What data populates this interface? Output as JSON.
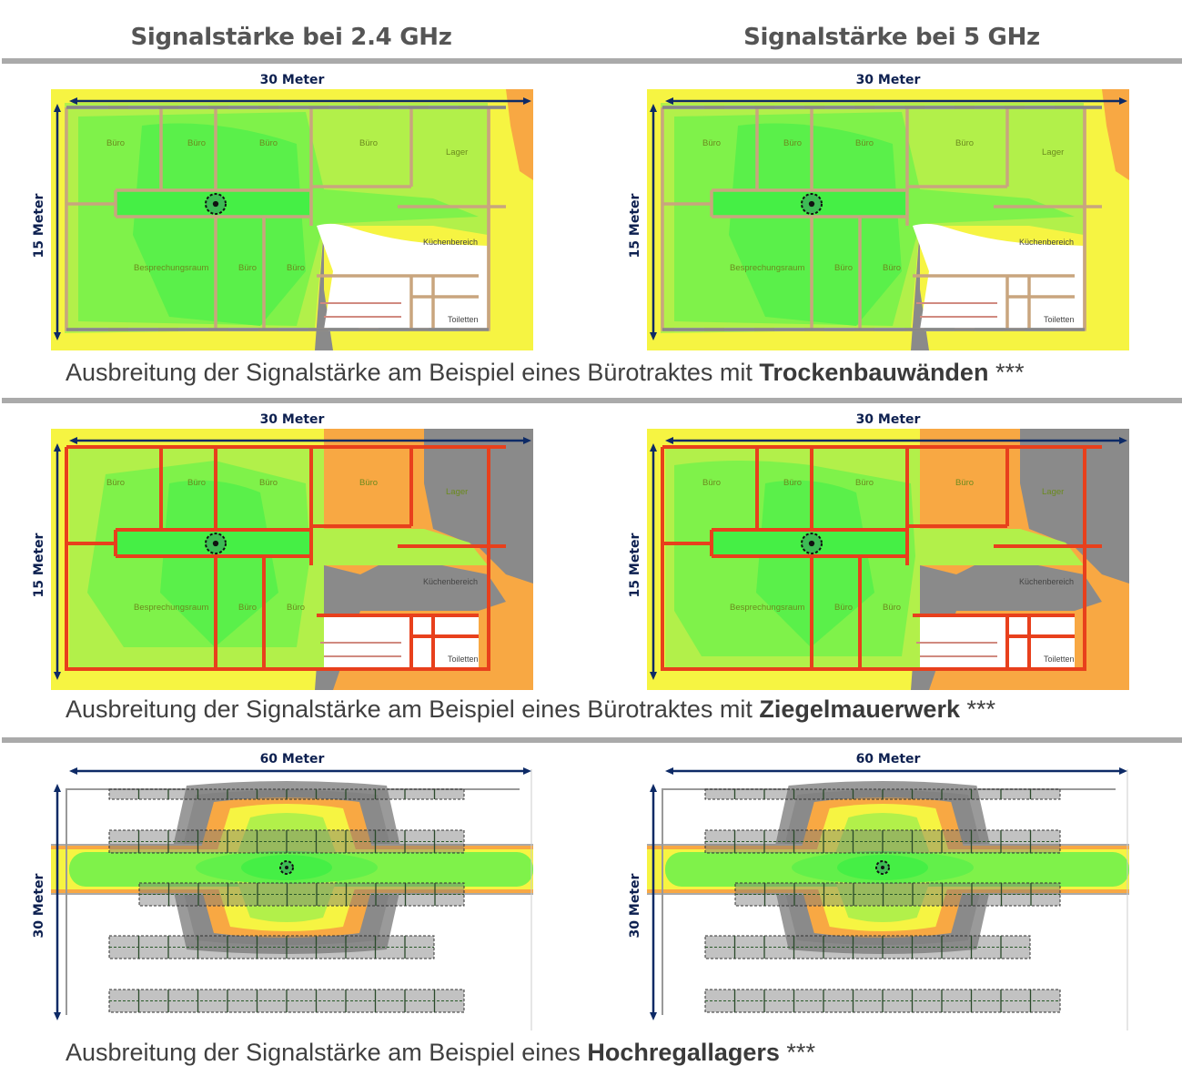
{
  "headers": {
    "left": "Signalstärke bei 2.4 GHz",
    "right": "Signalstärke bei 5 GHz"
  },
  "sections": [
    {
      "caption_prefix": "Ausbreitung der Signalstärke am Beispiel eines Bürotraktes mit ",
      "caption_bold": "Trockenbauwänden",
      "caption_suffix": " ***",
      "width_label": "30 Meter",
      "height_label": "15 Meter",
      "type": "office",
      "wall_color": "#c9a57e"
    },
    {
      "caption_prefix": "Ausbreitung der Signalstärke am Beispiel eines Bürotraktes mit ",
      "caption_bold": "Ziegelmauerwerk",
      "caption_suffix": " ***",
      "width_label": "30 Meter",
      "height_label": "15 Meter",
      "type": "office",
      "wall_color": "#e8401c"
    },
    {
      "caption_prefix": "Ausbreitung der Signalstärke am Beispiel eines ",
      "caption_bold": "Hochregallagers",
      "caption_suffix": " ***",
      "width_label": "60 Meter",
      "height_label": "30 Meter",
      "type": "warehouse",
      "wall_color": "#888888"
    }
  ],
  "rooms": [
    "Büro",
    "Büro",
    "Büro",
    "Büro",
    "Lager",
    "Besprechungsraum",
    "Büro",
    "Büro",
    "Küchenbereich",
    "Toiletten"
  ],
  "colors": {
    "strong": "#45ef45",
    "good": "#7ff24a",
    "fair": "#b2f04a",
    "weak": "#f6f442",
    "poor": "#f8a843",
    "none": "#8a8a8a",
    "arrow": "#0d2a66"
  }
}
